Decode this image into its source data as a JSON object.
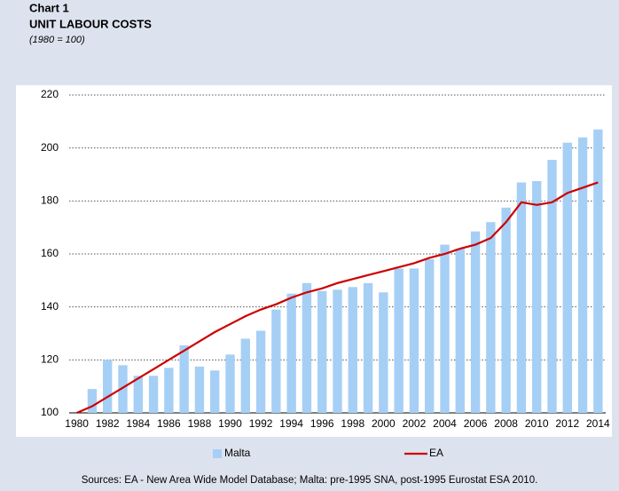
{
  "chart_data": {
    "type": "bar",
    "title": "Chart 1",
    "subtitle": "UNIT LABOUR COSTS",
    "note": "(1980 = 100)",
    "source": "Sources: EA - New Area Wide Model Database; Malta: pre-1995 SNA, post-1995 Eurostat ESA 2010.",
    "categories": [
      "1980",
      null,
      "1982",
      null,
      "1984",
      null,
      "1986",
      null,
      "1988",
      null,
      "1990",
      null,
      "1992",
      null,
      "1994",
      null,
      "1996",
      null,
      "1998",
      null,
      "2000",
      null,
      "2002",
      null,
      "2004",
      null,
      "2006",
      null,
      "2008",
      null,
      "2010",
      null,
      "2012",
      null,
      "2014"
    ],
    "series": [
      {
        "name": "Malta",
        "type": "bar",
        "color": "#a6cff5",
        "values": [
          100,
          109,
          120,
          118,
          114,
          114,
          117,
          125.5,
          117.5,
          116,
          122,
          128,
          131,
          139,
          145,
          149,
          146,
          146.5,
          147.5,
          149,
          145.5,
          154.5,
          154.5,
          158,
          163.5,
          162,
          168.5,
          172,
          177.5,
          187,
          187.5,
          195.5,
          202,
          204,
          207
        ]
      },
      {
        "name": "EA",
        "type": "line",
        "color": "#cc0000",
        "values": [
          100,
          102.5,
          106,
          109.5,
          113,
          116.5,
          120,
          123.5,
          127,
          130.5,
          133.5,
          136.5,
          139,
          141,
          143.5,
          145.5,
          147,
          149,
          150.5,
          152,
          153.5,
          155,
          156.5,
          158.5,
          160,
          162,
          163.5,
          166,
          172,
          179.5,
          178.5,
          179.5,
          183,
          185,
          187
        ]
      }
    ],
    "ylim": [
      100,
      220
    ],
    "yticks": [
      100,
      120,
      140,
      160,
      180,
      200,
      220
    ],
    "grid": true,
    "legend": "bottom"
  }
}
